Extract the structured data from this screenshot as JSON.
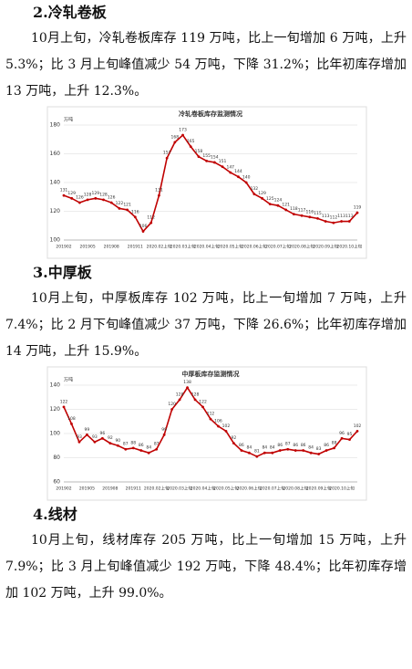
{
  "sections": [
    {
      "heading": "2.冷轧卷板",
      "text": "10月上旬，冷轧卷板库存 119 万吨，比上一旬增加 6 万吨，上升 5.3%；比 3 月上旬峰值减少 54 万吨，下降 31.2%；比年初库存增加 13 万吨，上升 12.3%。"
    },
    {
      "heading": "3.中厚板",
      "text": "10月上旬，中厚板库存 102 万吨，比上一旬增加 7 万吨，上升 7.4%；比 2 月下旬峰值减少 37 万吨，下降 26.6%；比年初库存增加 14 万吨，上升 15.9%。"
    },
    {
      "heading": "4.线材",
      "text": "10月上旬，线材库存 205 万吨，比上一旬增加 15 万吨，上升 7.9%；比 3 月上旬峰值减少 192 万吨，下降 48.4%；比年初库存增加 102 万吨，上升 99.0%。"
    }
  ],
  "chart_data": [
    {
      "type": "line",
      "title": "冷轧卷板库存监测情况",
      "y_unit": "万吨",
      "color": "#c00000",
      "categories": [
        "201902",
        null,
        null,
        "201905",
        null,
        null,
        "201908",
        null,
        null,
        "201911",
        null,
        null,
        "2020.02上旬",
        null,
        null,
        "2020.03上旬",
        null,
        null,
        "2020.04上旬",
        null,
        null,
        "2020.05上旬",
        null,
        null,
        "2020.06上旬",
        null,
        null,
        "2020.07上旬",
        null,
        null,
        "2020.08上旬",
        null,
        null,
        "2020.09上旬",
        null,
        null,
        "2020.10上旬",
        null
      ],
      "values": [
        131,
        129,
        126,
        128,
        129,
        128,
        126,
        122,
        121,
        116,
        106,
        112,
        131,
        157,
        168,
        173,
        165,
        158,
        155,
        154,
        151,
        147,
        144,
        140,
        132,
        129,
        125,
        124,
        121,
        118,
        117,
        116,
        115,
        113,
        112,
        113,
        113,
        119
      ],
      "ylim": [
        100,
        180
      ],
      "yticks": [
        100,
        120,
        140,
        160,
        180
      ],
      "grid": true
    },
    {
      "type": "line",
      "title": "中厚板库存监测情况",
      "y_unit": "万吨",
      "color": "#c00000",
      "categories": [
        "201902",
        null,
        null,
        "201905",
        null,
        null,
        "201908",
        null,
        null,
        "201911",
        null,
        null,
        "2020.02上旬",
        null,
        null,
        "2020.03上旬",
        null,
        null,
        "2020.04上旬",
        null,
        null,
        "2020.05上旬",
        null,
        null,
        "2020.06上旬",
        null,
        null,
        "2020.07上旬",
        null,
        null,
        "2020.08上旬",
        null,
        null,
        "2020.09上旬",
        null,
        null,
        "2020.10上旬",
        null,
        null
      ],
      "values": [
        122,
        108,
        93,
        99,
        93,
        96,
        92,
        90,
        87,
        88,
        86,
        84,
        87,
        99,
        120,
        128,
        138,
        128,
        122,
        112,
        106,
        102,
        92,
        86,
        84,
        81,
        84,
        84,
        86,
        87,
        86,
        86,
        84,
        83,
        86,
        88,
        96,
        95,
        102
      ],
      "ylim": [
        60,
        140
      ],
      "yticks": [
        60,
        80,
        100,
        120,
        140
      ],
      "grid": true
    }
  ]
}
